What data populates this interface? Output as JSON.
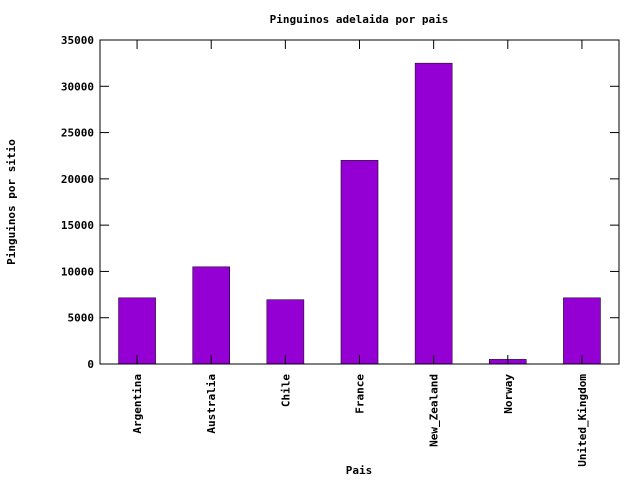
{
  "chart_data": {
    "type": "bar",
    "title": "Pinguinos adelaida por pais",
    "xlabel": "Pais",
    "ylabel": "Pinguinos por sitio",
    "categories": [
      "Argentina",
      "Australia",
      "Chile",
      "France",
      "New_Zealand",
      "Norway",
      "United_Kingdom"
    ],
    "values": [
      7150,
      10500,
      6950,
      22000,
      32500,
      500,
      7150
    ],
    "ylim": [
      0,
      35000
    ],
    "yticks": [
      0,
      5000,
      10000,
      15000,
      20000,
      25000,
      30000,
      35000
    ],
    "grid": false,
    "bar_color": "#9400d3"
  }
}
